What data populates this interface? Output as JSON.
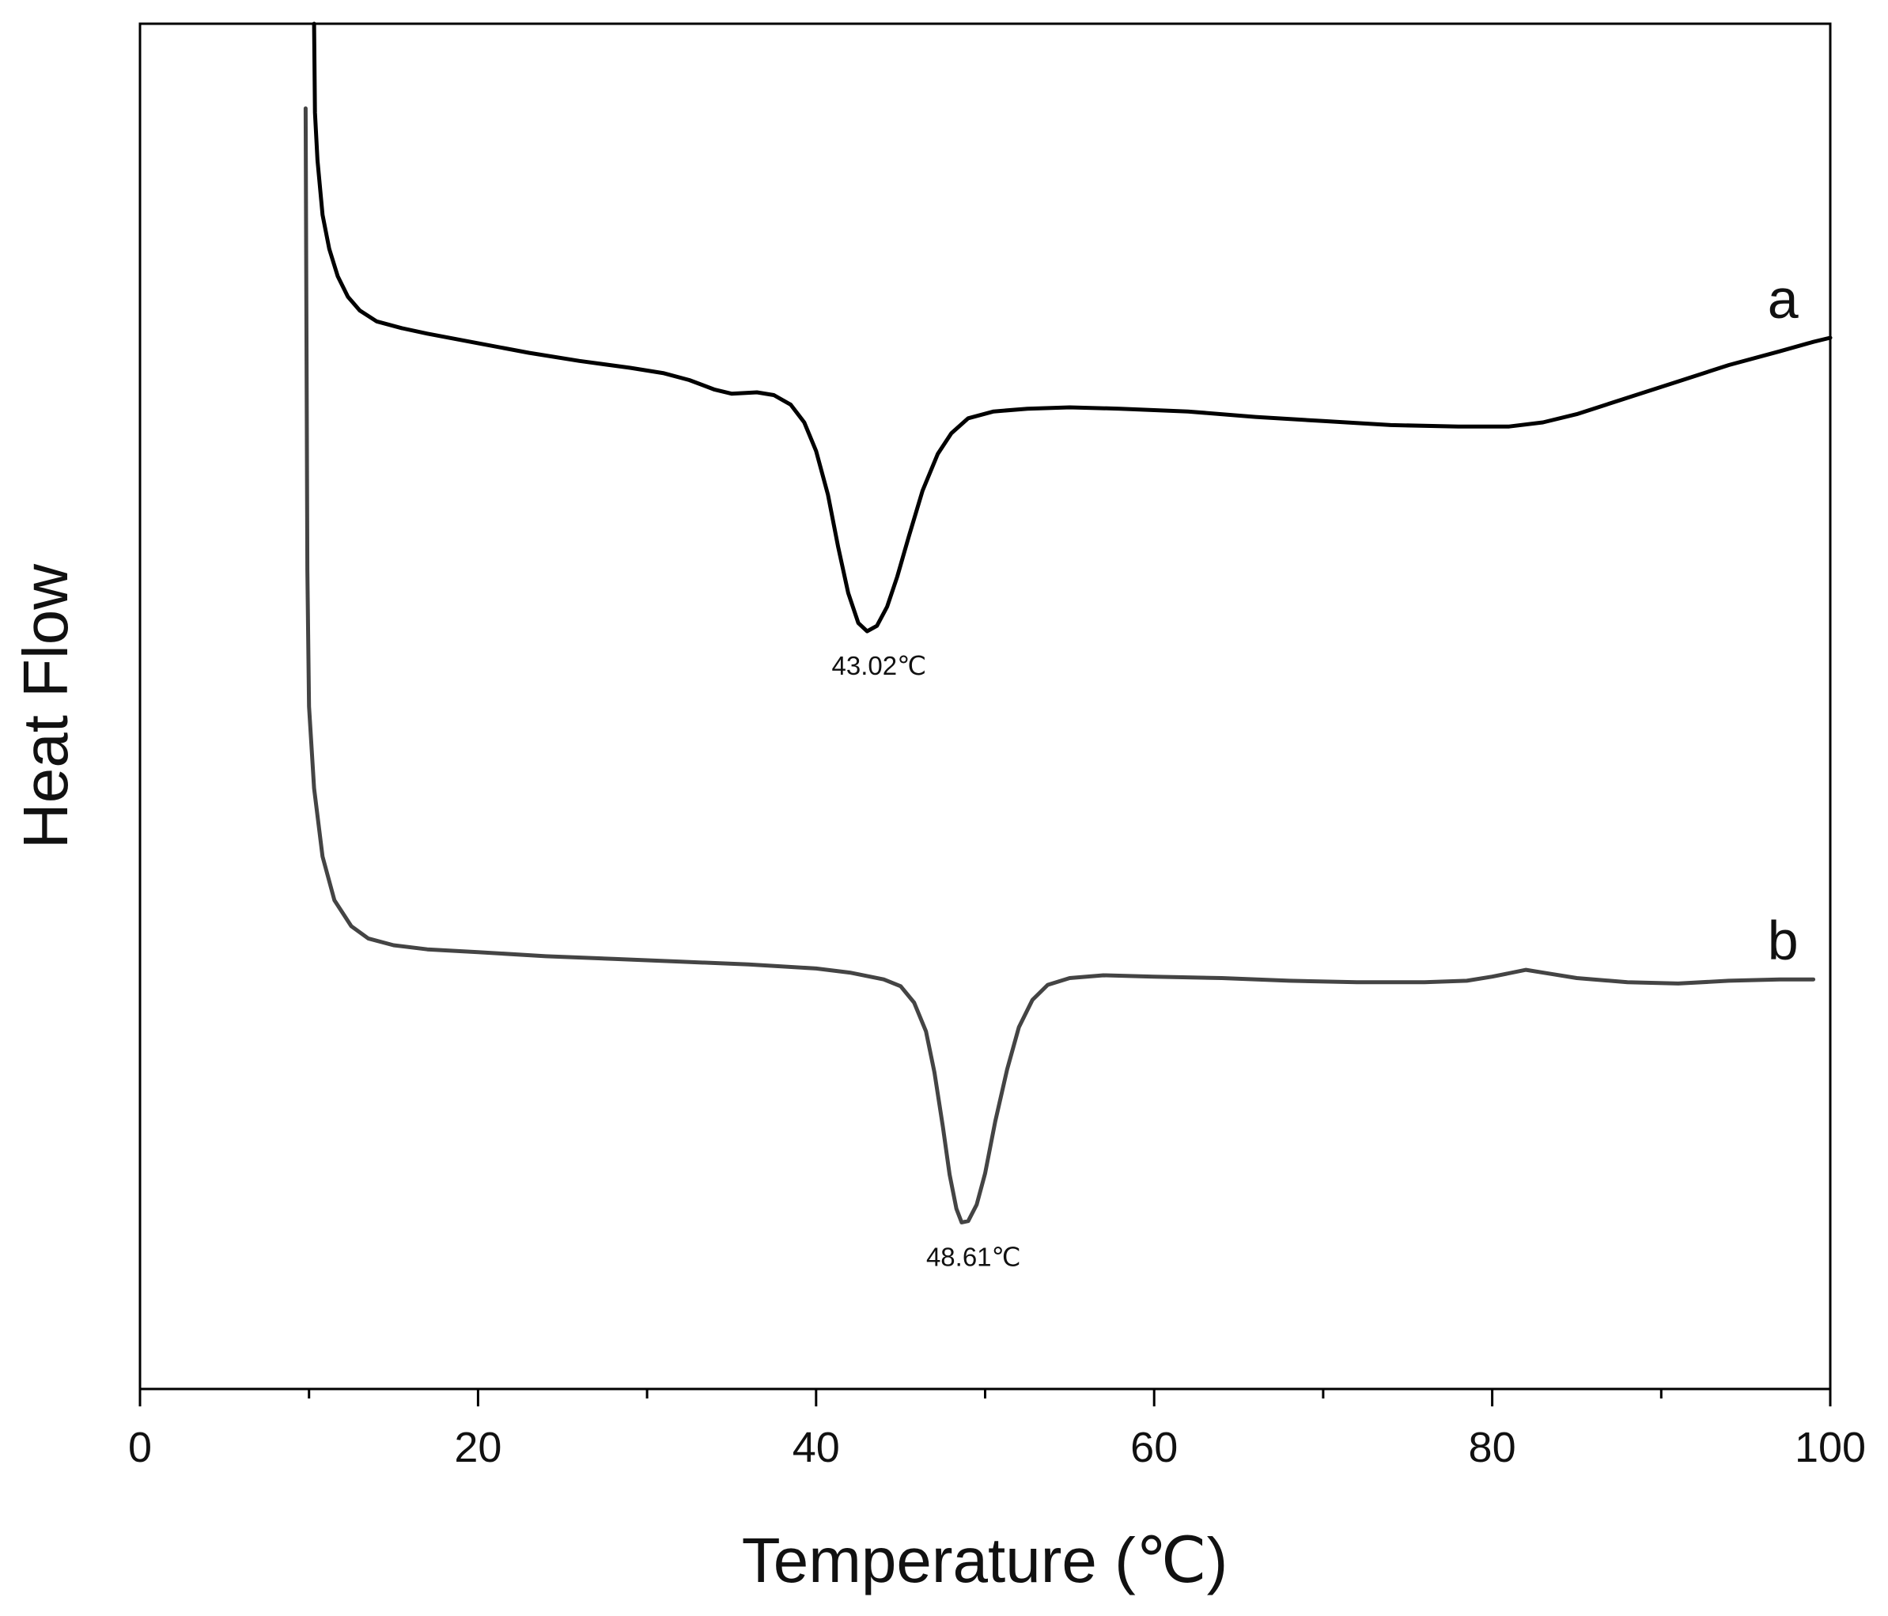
{
  "chart_data": {
    "type": "line",
    "title": "",
    "xlabel": "Temperature (℃)",
    "ylabel": "Heat Flow",
    "xlim": [
      0,
      100
    ],
    "x_ticks": [
      0,
      20,
      40,
      60,
      80,
      100
    ],
    "x_minor_ticks": [
      10,
      30,
      50,
      70,
      90
    ],
    "y_ticks_shown": false,
    "grid": false,
    "series": [
      {
        "name": "a",
        "color": "#000000",
        "points": [
          [
            10.3,
            1.0
          ],
          [
            10.35,
            0.935
          ],
          [
            10.5,
            0.9
          ],
          [
            10.8,
            0.86
          ],
          [
            11.2,
            0.835
          ],
          [
            11.7,
            0.815
          ],
          [
            12.3,
            0.8
          ],
          [
            13.0,
            0.79
          ],
          [
            14.0,
            0.782
          ],
          [
            15.5,
            0.777
          ],
          [
            17.0,
            0.773
          ],
          [
            20.0,
            0.766
          ],
          [
            23.0,
            0.759
          ],
          [
            26.0,
            0.753
          ],
          [
            29.0,
            0.748
          ],
          [
            31.0,
            0.744
          ],
          [
            32.5,
            0.739
          ],
          [
            34.0,
            0.732
          ],
          [
            35.0,
            0.729
          ],
          [
            36.5,
            0.73
          ],
          [
            37.5,
            0.728
          ],
          [
            38.5,
            0.721
          ],
          [
            39.3,
            0.708
          ],
          [
            40.0,
            0.687
          ],
          [
            40.7,
            0.655
          ],
          [
            41.3,
            0.617
          ],
          [
            41.9,
            0.583
          ],
          [
            42.5,
            0.561
          ],
          [
            43.02,
            0.555
          ],
          [
            43.6,
            0.559
          ],
          [
            44.2,
            0.573
          ],
          [
            44.8,
            0.595
          ],
          [
            45.5,
            0.625
          ],
          [
            46.3,
            0.658
          ],
          [
            47.2,
            0.685
          ],
          [
            48.0,
            0.7
          ],
          [
            49.0,
            0.711
          ],
          [
            50.5,
            0.716
          ],
          [
            52.5,
            0.718
          ],
          [
            55.0,
            0.719
          ],
          [
            58.0,
            0.718
          ],
          [
            62.0,
            0.716
          ],
          [
            66.0,
            0.712
          ],
          [
            70.0,
            0.709
          ],
          [
            74.0,
            0.706
          ],
          [
            78.0,
            0.705
          ],
          [
            81.0,
            0.705
          ],
          [
            83.0,
            0.708
          ],
          [
            85.0,
            0.714
          ],
          [
            88.0,
            0.726
          ],
          [
            91.0,
            0.738
          ],
          [
            94.0,
            0.75
          ],
          [
            97.0,
            0.76
          ],
          [
            99.0,
            0.767
          ],
          [
            100.0,
            0.77
          ]
        ]
      },
      {
        "name": "b",
        "color": "#444444",
        "points": [
          [
            9.8,
            0.938
          ],
          [
            9.9,
            0.6
          ],
          [
            10.0,
            0.5
          ],
          [
            10.3,
            0.44
          ],
          [
            10.8,
            0.39
          ],
          [
            11.5,
            0.358
          ],
          [
            12.5,
            0.339
          ],
          [
            13.5,
            0.33
          ],
          [
            15.0,
            0.325
          ],
          [
            17.0,
            0.322
          ],
          [
            20.0,
            0.32
          ],
          [
            24.0,
            0.317
          ],
          [
            28.0,
            0.315
          ],
          [
            32.0,
            0.313
          ],
          [
            36.0,
            0.311
          ],
          [
            40.0,
            0.308
          ],
          [
            42.0,
            0.305
          ],
          [
            44.0,
            0.3
          ],
          [
            45.0,
            0.295
          ],
          [
            45.8,
            0.283
          ],
          [
            46.5,
            0.262
          ],
          [
            47.0,
            0.232
          ],
          [
            47.5,
            0.192
          ],
          [
            47.9,
            0.157
          ],
          [
            48.3,
            0.132
          ],
          [
            48.61,
            0.122
          ],
          [
            49.0,
            0.123
          ],
          [
            49.5,
            0.135
          ],
          [
            50.0,
            0.158
          ],
          [
            50.6,
            0.196
          ],
          [
            51.3,
            0.234
          ],
          [
            52.0,
            0.265
          ],
          [
            52.8,
            0.285
          ],
          [
            53.7,
            0.296
          ],
          [
            55.0,
            0.301
          ],
          [
            57.0,
            0.303
          ],
          [
            60.0,
            0.302
          ],
          [
            64.0,
            0.301
          ],
          [
            68.0,
            0.299
          ],
          [
            72.0,
            0.298
          ],
          [
            76.0,
            0.298
          ],
          [
            78.5,
            0.299
          ],
          [
            80.0,
            0.302
          ],
          [
            82.0,
            0.307
          ],
          [
            83.5,
            0.304
          ],
          [
            85.0,
            0.301
          ],
          [
            88.0,
            0.298
          ],
          [
            91.0,
            0.297
          ],
          [
            94.0,
            0.299
          ],
          [
            97.0,
            0.3
          ],
          [
            99.0,
            0.3
          ]
        ]
      }
    ],
    "annotations": [
      {
        "text": "43.02℃",
        "x": 43.02,
        "y": 0.555
      },
      {
        "text": "48.61℃",
        "x": 48.61,
        "y": 0.122
      }
    ]
  }
}
